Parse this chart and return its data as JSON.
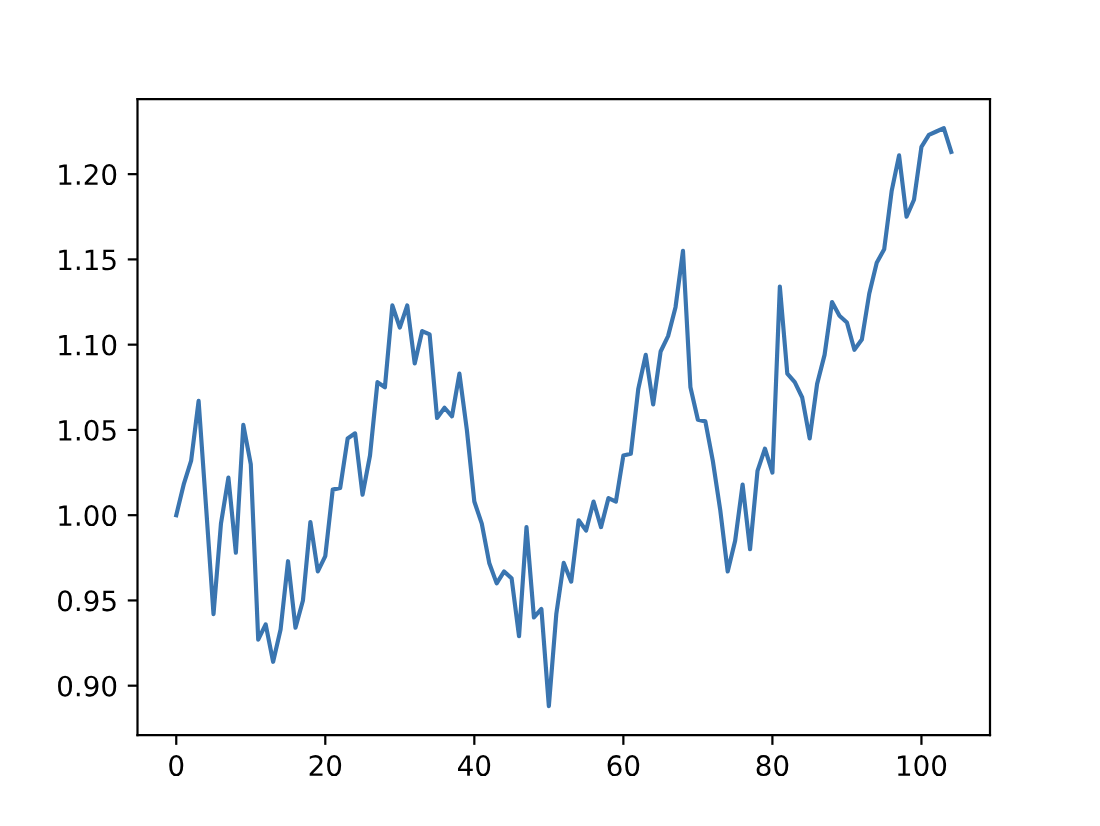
{
  "chart_data": {
    "type": "line",
    "x": [
      0,
      1,
      2,
      3,
      4,
      5,
      6,
      7,
      8,
      9,
      10,
      11,
      12,
      13,
      14,
      15,
      16,
      17,
      18,
      19,
      20,
      21,
      22,
      23,
      24,
      25,
      26,
      27,
      28,
      29,
      30,
      31,
      32,
      33,
      34,
      35,
      36,
      37,
      38,
      39,
      40,
      41,
      42,
      43,
      44,
      45,
      46,
      47,
      48,
      49,
      50,
      51,
      52,
      53,
      54,
      55,
      56,
      57,
      58,
      59,
      60,
      61,
      62,
      63,
      64,
      65,
      66,
      67,
      68,
      69,
      70,
      71,
      72,
      73,
      74,
      75,
      76,
      77,
      78,
      79,
      80,
      81,
      82,
      83,
      84,
      85,
      86,
      87,
      88,
      89,
      90,
      91,
      92,
      93,
      94,
      95,
      96,
      97,
      98,
      99,
      100,
      101,
      102,
      103,
      104
    ],
    "series": [
      {
        "color": "#3a75b0",
        "values": [
          1.0,
          1.018,
          1.032,
          1.067,
          1.005,
          0.942,
          0.995,
          1.022,
          0.978,
          1.053,
          1.03,
          0.927,
          0.936,
          0.914,
          0.933,
          0.973,
          0.934,
          0.95,
          0.996,
          0.967,
          0.976,
          1.015,
          1.016,
          1.045,
          1.048,
          1.012,
          1.035,
          1.078,
          1.075,
          1.123,
          1.11,
          1.123,
          1.089,
          1.108,
          1.106,
          1.057,
          1.063,
          1.058,
          1.083,
          1.05,
          1.008,
          0.995,
          0.972,
          0.96,
          0.967,
          0.963,
          0.929,
          0.993,
          0.94,
          0.945,
          0.888,
          0.942,
          0.972,
          0.961,
          0.997,
          0.991,
          1.008,
          0.993,
          1.01,
          1.008,
          1.035,
          1.036,
          1.074,
          1.094,
          1.065,
          1.096,
          1.105,
          1.122,
          1.155,
          1.075,
          1.056,
          1.055,
          1.032,
          1.003,
          0.967,
          0.985,
          1.018,
          0.98,
          1.026,
          1.039,
          1.025,
          1.134,
          1.083,
          1.078,
          1.069,
          1.045,
          1.077,
          1.094,
          1.125,
          1.117,
          1.113,
          1.097,
          1.103,
          1.13,
          1.148,
          1.156,
          1.19,
          1.211,
          1.175,
          1.185,
          1.216,
          1.223,
          1.225,
          1.227,
          1.213
        ]
      }
    ],
    "xlim": [
      -5.2,
      109.2
    ],
    "ylim": [
      0.871,
      1.244
    ],
    "xticks": [
      0,
      20,
      40,
      60,
      80,
      100
    ],
    "yticks": [
      {
        "value": 0.9,
        "label": "0.90"
      },
      {
        "value": 0.95,
        "label": "0.95"
      },
      {
        "value": 1.0,
        "label": "1.00"
      },
      {
        "value": 1.05,
        "label": "1.05"
      },
      {
        "value": 1.1,
        "label": "1.10"
      },
      {
        "value": 1.15,
        "label": "1.15"
      },
      {
        "value": 1.2,
        "label": "1.20"
      }
    ],
    "grid": false
  }
}
